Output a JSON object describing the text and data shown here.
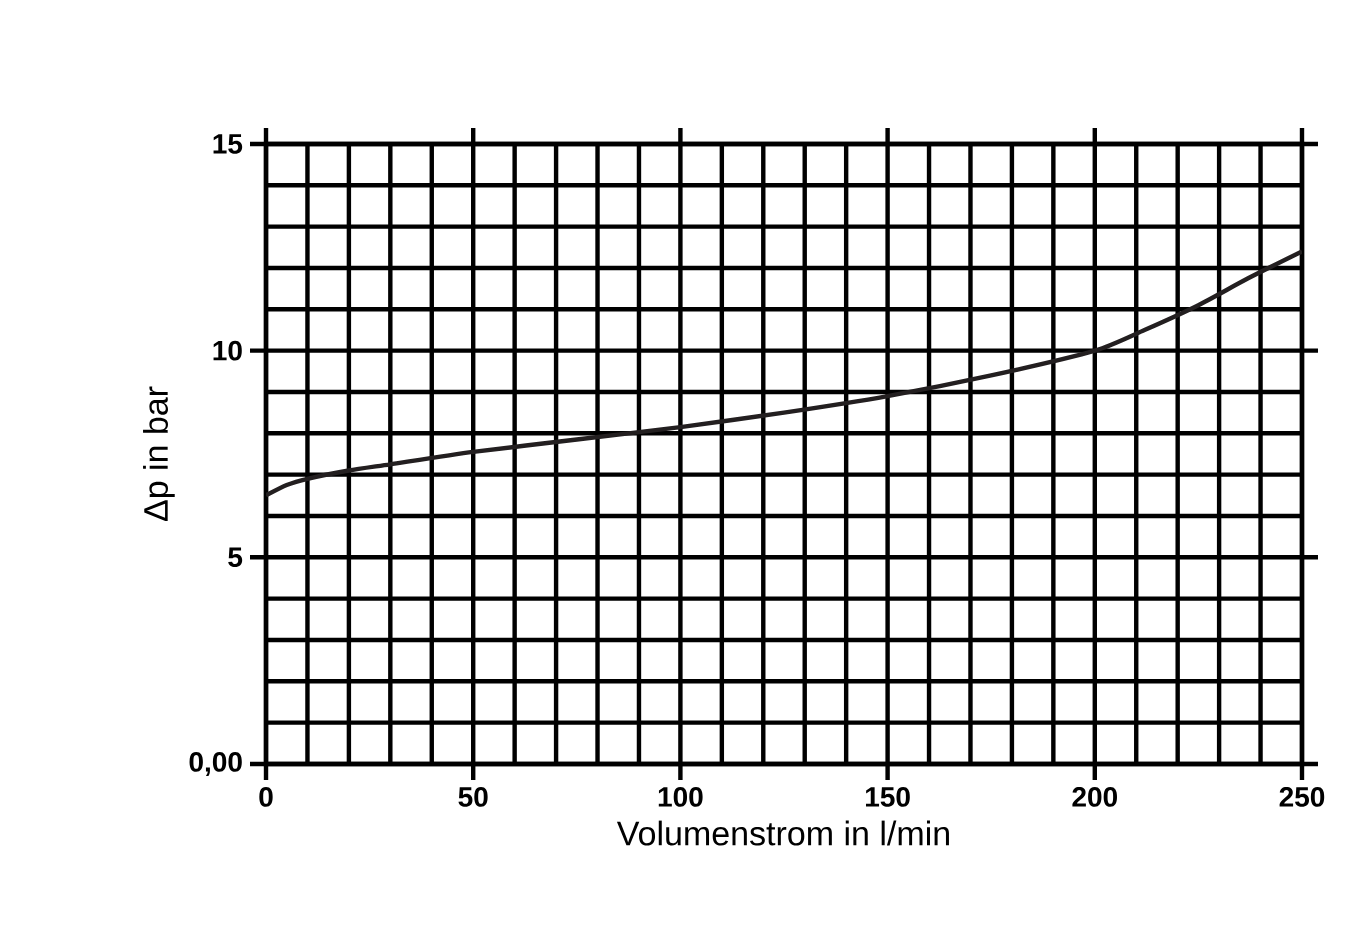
{
  "chart_data": {
    "type": "line",
    "xlabel": "Volumenstrom in l/min",
    "ylabel": "Δp in bar",
    "x": [
      0,
      5,
      10,
      20,
      30,
      50,
      75,
      100,
      125,
      150,
      175,
      200,
      212,
      225,
      237,
      250
    ],
    "series": [
      {
        "color": "#231f20",
        "values": [
          6.5,
          6.75,
          6.9,
          7.1,
          7.25,
          7.55,
          7.85,
          8.15,
          8.5,
          8.9,
          9.4,
          10.0,
          10.5,
          11.1,
          11.75,
          12.4
        ]
      }
    ],
    "xlim": [
      0,
      250
    ],
    "xticks": [
      0,
      50,
      100,
      150,
      200,
      250
    ],
    "ylim": [
      0,
      15
    ],
    "yticks": [
      {
        "value": 0,
        "label": "0,00"
      },
      5,
      10,
      15
    ],
    "grid": true,
    "marker": "none",
    "line_style": "solid"
  }
}
